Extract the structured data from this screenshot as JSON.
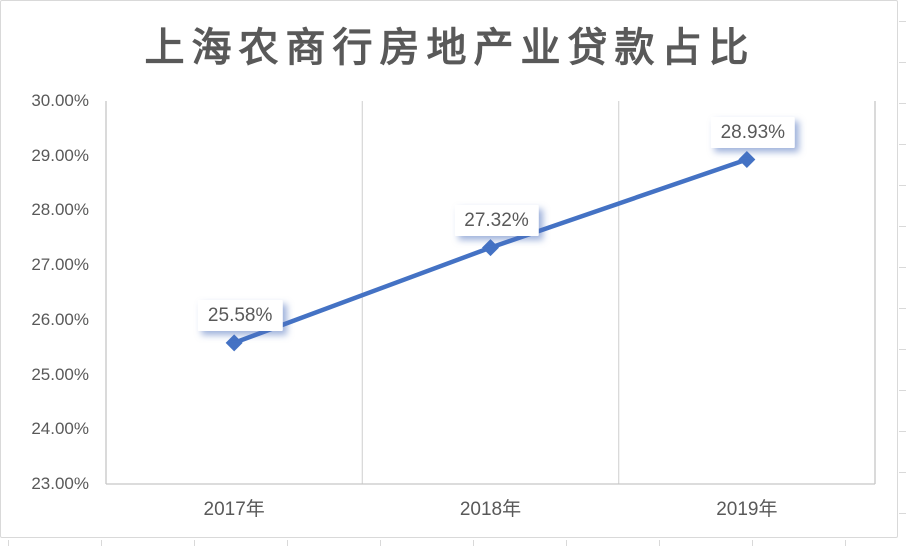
{
  "frame": {
    "background": "#FFFFFF",
    "border_color": "#D9D9D9"
  },
  "chart_data": {
    "type": "line",
    "title": "上海农商行房地产业贷款占比",
    "categories": [
      "2017年",
      "2018年",
      "2019年"
    ],
    "values": [
      25.58,
      27.32,
      28.93
    ],
    "data_labels": [
      "25.58%",
      "27.32%",
      "28.93%"
    ],
    "ylim": [
      23,
      30
    ],
    "ytick_step": 1,
    "ytick_labels": [
      "30.00%",
      "29.00%",
      "28.00%",
      "27.00%",
      "26.00%",
      "25.00%",
      "24.00%",
      "23.00%"
    ],
    "xlabel": "",
    "ylabel": "",
    "grid": "vertical-only",
    "legend": "none",
    "marker": "diamond",
    "colors": {
      "series_line": "#4472C4",
      "marker_fill": "#4472C4",
      "title_text": "#595959",
      "axis_text": "#595959",
      "data_label_text": "#595959",
      "gridline": "#D9D9D9",
      "axis_line": "#C6C6C6",
      "data_label_bg": "#FFFFFF"
    }
  }
}
